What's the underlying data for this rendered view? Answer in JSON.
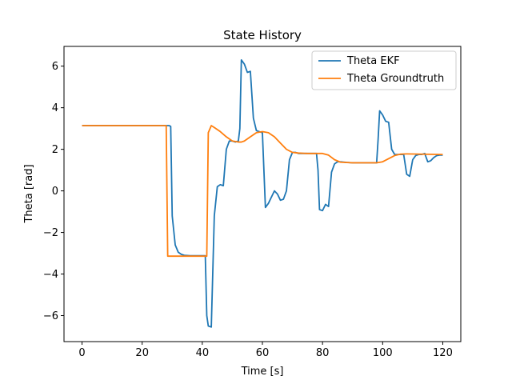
{
  "chart_data": {
    "type": "line",
    "title": "State History",
    "xlabel": "Time [s]",
    "ylabel": "Theta [rad]",
    "xlim": [
      -6,
      126
    ],
    "ylim": [
      -7.25,
      6.95
    ],
    "xticks": [
      0,
      20,
      40,
      60,
      80,
      100,
      120
    ],
    "yticks": [
      -6,
      -4,
      -2,
      0,
      2,
      4,
      6
    ],
    "xtick_labels": [
      "0",
      "20",
      "40",
      "60",
      "80",
      "100",
      "120"
    ],
    "ytick_labels": [
      "−6",
      "−4",
      "−2",
      "0",
      "2",
      "4",
      "6"
    ],
    "grid": false,
    "legend": "top-right",
    "series": [
      {
        "name": "Theta EKF",
        "color": "#1f77b4",
        "x": [
          0,
          10,
          20,
          28,
          29,
          29.5,
          30,
          31,
          32,
          33,
          34,
          36,
          38,
          40,
          41,
          41.5,
          42,
          43,
          44,
          45,
          46,
          47,
          48,
          49,
          50,
          51,
          52,
          52.5,
          53,
          54,
          55,
          56,
          57,
          58,
          59,
          60,
          61,
          62,
          63,
          64,
          65,
          66,
          67,
          68,
          69,
          70,
          71,
          72,
          75,
          78,
          78.5,
          79,
          80,
          81,
          82,
          83,
          84,
          85,
          86,
          88,
          90,
          92,
          95,
          98,
          98.5,
          99,
          100,
          101,
          102,
          103,
          104,
          105,
          106,
          107,
          108,
          109,
          110,
          111,
          112,
          113,
          114,
          115,
          116,
          117,
          118,
          119,
          120
        ],
        "y": [
          3.14,
          3.14,
          3.14,
          3.14,
          3.14,
          3.1,
          -1.2,
          -2.6,
          -2.95,
          -3.05,
          -3.1,
          -3.12,
          -3.12,
          -3.12,
          -3.12,
          -6.0,
          -6.5,
          -6.55,
          -1.2,
          0.2,
          0.3,
          0.25,
          2.0,
          2.4,
          2.4,
          2.35,
          2.4,
          3.0,
          6.3,
          6.1,
          5.7,
          5.75,
          3.5,
          2.9,
          2.85,
          2.8,
          -0.8,
          -0.6,
          -0.3,
          0.0,
          -0.15,
          -0.45,
          -0.4,
          0.0,
          1.5,
          1.85,
          1.85,
          1.8,
          1.8,
          1.8,
          1.0,
          -0.9,
          -0.95,
          -0.65,
          -0.75,
          0.9,
          1.3,
          1.4,
          1.4,
          1.37,
          1.35,
          1.35,
          1.35,
          1.35,
          2.5,
          3.85,
          3.65,
          3.35,
          3.3,
          2.0,
          1.75,
          1.75,
          1.75,
          1.75,
          0.8,
          0.7,
          1.5,
          1.7,
          1.75,
          1.75,
          1.8,
          1.4,
          1.45,
          1.6,
          1.7,
          1.72,
          1.72
        ]
      },
      {
        "name": "Theta Groundtruth",
        "color": "#ff7f0e",
        "x": [
          0,
          10,
          20,
          28,
          28.5,
          30,
          35,
          40,
          41.5,
          42,
          43,
          44,
          46,
          48,
          50,
          52,
          53,
          54,
          56,
          58,
          60,
          62,
          64,
          66,
          68,
          70,
          72,
          75,
          78,
          80,
          82,
          84,
          86,
          90,
          95,
          98,
          100,
          102,
          104,
          106,
          108,
          112,
          116,
          120
        ],
        "y": [
          3.14,
          3.14,
          3.14,
          3.14,
          -3.14,
          -3.14,
          -3.14,
          -3.14,
          -3.14,
          2.8,
          3.14,
          3.05,
          2.85,
          2.6,
          2.4,
          2.35,
          2.35,
          2.4,
          2.6,
          2.8,
          2.85,
          2.8,
          2.6,
          2.3,
          2.0,
          1.85,
          1.82,
          1.8,
          1.8,
          1.8,
          1.72,
          1.5,
          1.38,
          1.35,
          1.35,
          1.35,
          1.4,
          1.55,
          1.7,
          1.77,
          1.78,
          1.77,
          1.76,
          1.75
        ]
      }
    ]
  }
}
